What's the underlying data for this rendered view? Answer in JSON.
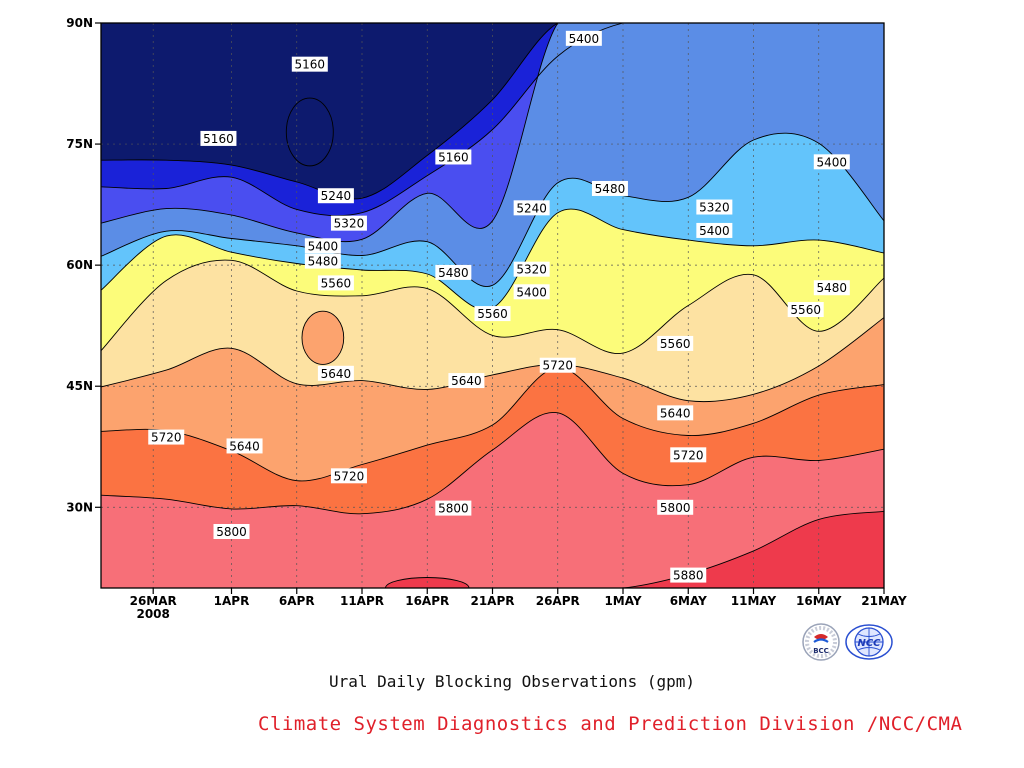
{
  "caption": "Ural Daily Blocking Observations (gpm)",
  "credit": "Climate System Diagnostics and Prediction Division /NCC/CMA",
  "logos": {
    "left": "BCC",
    "right": "NCC"
  },
  "colors": {
    "b4": "#0d1a6e",
    "b5": "#1a22d8",
    "b6": "#4a4ef0",
    "b7": "#5b8de6",
    "b8": "#63c4fb",
    "b9": "#fcfc7a",
    "b10": "#fde2a2",
    "b11": "#fca36e",
    "b12": "#fb7342",
    "b13": "#f76f78",
    "b14": "#ee3a4c",
    "frame": "#000000"
  },
  "chart_data": {
    "type": "heatmap",
    "subtype": "filled-contour (Hovmoller, latitude vs time)",
    "title": "",
    "xlabel": "",
    "ylabel": "",
    "units": "gpm",
    "x_ticks": [
      "26MAR",
      "1APR",
      "6APR",
      "11APR",
      "16APR",
      "21APR",
      "26APR",
      "1MAY",
      "6MAY",
      "11MAY",
      "16MAY",
      "21MAY"
    ],
    "x_year_label": "2008",
    "y_ticks": [
      "90N",
      "75N",
      "60N",
      "45N",
      "30N"
    ],
    "y_tick_values": [
      90,
      75,
      60,
      45,
      30
    ],
    "xlim": [
      "2008-03-22",
      "2008-05-21"
    ],
    "ylim": [
      20,
      90
    ],
    "grid": true,
    "contour_levels": [
      4920,
      5000,
      5080,
      5160,
      5240,
      5320,
      5400,
      5480,
      5560,
      5640,
      5720,
      5800,
      5880
    ],
    "fill_colors": [
      "#0d1a6e",
      "#1a22d8",
      "#4a4ef0",
      "#5b8de6",
      "#63c4fb",
      "#fcfc7a",
      "#fde2a2",
      "#fca36e",
      "#fb7342",
      "#f76f78",
      "#ee3a4c"
    ],
    "isolines": [
      {
        "value": 5160,
        "latitudes": [
          73.0,
          73.0,
          72.4,
          70.3,
          68.3,
          73.6,
          80.5,
          90.0,
          90.0,
          90.0,
          90.0,
          90.0,
          90.0
        ]
      },
      {
        "value": 5240,
        "latitudes": [
          69.7,
          69.5,
          70.9,
          66.9,
          66.5,
          71.1,
          76.8,
          85.9,
          90.0,
          90.0,
          90.0,
          90.0,
          90.0
        ]
      },
      {
        "value": 5320,
        "latitudes": [
          65.2,
          67.0,
          66.2,
          64.0,
          63.2,
          68.9,
          65.5,
          90.0,
          90.0,
          90.0,
          90.0,
          90.0,
          90.0
        ]
      },
      {
        "value": 5400,
        "latitudes": [
          61.1,
          64.2,
          63.3,
          62.4,
          61.2,
          62.9,
          57.5,
          70.2,
          68.6,
          68.4,
          75.5,
          75.1,
          65.5
        ]
      },
      {
        "value": 5480,
        "latitudes": [
          56.9,
          63.6,
          61.6,
          60.2,
          59.4,
          58.9,
          54.7,
          66.5,
          64.4,
          63.1,
          62.4,
          63.1,
          61.5
        ]
      },
      {
        "value": 5560,
        "latitudes": [
          49.4,
          58.1,
          60.6,
          56.8,
          56.2,
          57.1,
          51.3,
          52.0,
          49.1,
          55.0,
          58.8,
          51.8,
          58.4
        ]
      },
      {
        "value": 5640,
        "latitudes": [
          44.9,
          47.0,
          49.7,
          45.3,
          45.7,
          44.6,
          46.4,
          47.7,
          46.0,
          43.2,
          44.0,
          47.5,
          53.5
        ]
      },
      {
        "value": 5720,
        "latitudes": [
          39.4,
          39.5,
          37.0,
          33.3,
          35.3,
          37.7,
          40.2,
          47.3,
          41.0,
          38.9,
          40.4,
          43.9,
          45.2
        ]
      },
      {
        "value": 5800,
        "latitudes": [
          31.5,
          31.0,
          29.8,
          30.2,
          29.2,
          31.0,
          37.1,
          41.7,
          34.2,
          32.8,
          36.2,
          35.8,
          37.2
        ]
      },
      {
        "value": 5880,
        "latitudes": [
          20.0,
          20.0,
          20.0,
          20.0,
          20.0,
          20.0,
          20.0,
          20.0,
          20.0,
          21.7,
          24.6,
          28.5,
          29.5
        ]
      }
    ],
    "isoline_dates": [
      "2008-03-22",
      "2008-03-27",
      "2008-04-01",
      "2008-04-06",
      "2008-04-11",
      "2008-04-16",
      "2008-04-21",
      "2008-04-26",
      "2008-05-01",
      "2008-05-06",
      "2008-05-11",
      "2008-05-16",
      "2008-05-21"
    ],
    "features": [
      {
        "value": 5640,
        "kind": "closed-high",
        "center": [
          "2008-04-08",
          51
        ]
      },
      {
        "value": 5160,
        "kind": "closed-low",
        "center": [
          "2008-04-07",
          76.5
        ]
      },
      {
        "value": 5880,
        "kind": "closed-high",
        "center": [
          "2008-04-16",
          20.5
        ]
      }
    ],
    "annotations": [
      {
        "text": "5160",
        "x": "2008-04-07",
        "y": 84.9
      },
      {
        "text": "5160",
        "x": "2008-03-31",
        "y": 75.7
      },
      {
        "text": "5240",
        "x": "2008-04-09",
        "y": 68.6
      },
      {
        "text": "5320",
        "x": "2008-04-10",
        "y": 65.2
      },
      {
        "text": "5400",
        "x": "2008-04-08",
        "y": 62.4
      },
      {
        "text": "5480",
        "x": "2008-04-08",
        "y": 60.5
      },
      {
        "text": "5560",
        "x": "2008-04-09",
        "y": 57.8
      },
      {
        "text": "5640",
        "x": "2008-04-09",
        "y": 46.6
      },
      {
        "text": "5720",
        "x": "2008-03-27",
        "y": 38.7
      },
      {
        "text": "5640",
        "x": "2008-04-02",
        "y": 37.6
      },
      {
        "text": "5720",
        "x": "2008-04-10",
        "y": 33.9
      },
      {
        "text": "5800",
        "x": "2008-04-01",
        "y": 27.0
      },
      {
        "text": "5160",
        "x": "2008-04-18",
        "y": 73.4
      },
      {
        "text": "5480",
        "x": "2008-04-18",
        "y": 59.1
      },
      {
        "text": "5640",
        "x": "2008-04-19",
        "y": 45.7
      },
      {
        "text": "5800",
        "x": "2008-04-18",
        "y": 29.9
      },
      {
        "text": "5240",
        "x": "2008-04-24",
        "y": 67.1
      },
      {
        "text": "5320",
        "x": "2008-04-24",
        "y": 59.5
      },
      {
        "text": "5400",
        "x": "2008-04-24",
        "y": 56.7
      },
      {
        "text": "5560",
        "x": "2008-04-21",
        "y": 54.0
      },
      {
        "text": "5720",
        "x": "2008-04-26",
        "y": 47.6
      },
      {
        "text": "5400",
        "x": "2008-04-28",
        "y": 88.1
      },
      {
        "text": "5480",
        "x": "2008-04-30",
        "y": 69.5
      },
      {
        "text": "5560",
        "x": "2008-05-05",
        "y": 50.3
      },
      {
        "text": "5640",
        "x": "2008-05-05",
        "y": 41.7
      },
      {
        "text": "5720",
        "x": "2008-05-06",
        "y": 36.5
      },
      {
        "text": "5800",
        "x": "2008-05-05",
        "y": 30.0
      },
      {
        "text": "5880",
        "x": "2008-05-06",
        "y": 21.6
      },
      {
        "text": "5320",
        "x": "2008-05-08",
        "y": 67.2
      },
      {
        "text": "5400",
        "x": "2008-05-08",
        "y": 64.3
      },
      {
        "text": "5480",
        "x": "2008-05-17",
        "y": 57.2
      },
      {
        "text": "5560",
        "x": "2008-05-15",
        "y": 54.5
      },
      {
        "text": "5400",
        "x": "2008-05-17",
        "y": 72.8
      }
    ]
  }
}
